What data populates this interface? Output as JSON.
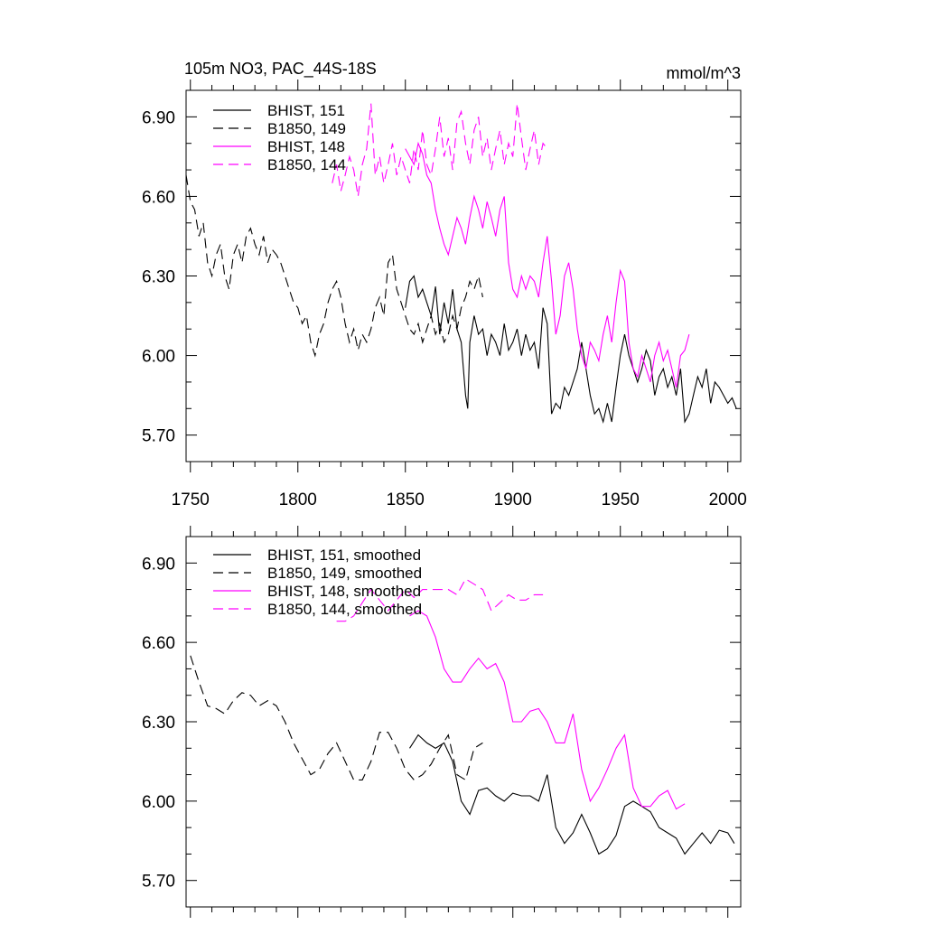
{
  "colors": {
    "black": "#000000",
    "magenta": "#ff00ff"
  },
  "chart_data": [
    {
      "type": "line",
      "title": "105m NO3, PAC_44S-18S",
      "units": "mmol/m^3",
      "xlim": [
        1748,
        2006
      ],
      "ylim": [
        5.6,
        7.0
      ],
      "yticks": [
        5.7,
        6.0,
        6.3,
        6.6,
        6.9
      ],
      "ytick_labels": [
        "5.70",
        "6.00",
        "6.30",
        "6.60",
        "6.90"
      ],
      "xticks": [
        1750,
        1800,
        1850,
        1900,
        1950,
        2000
      ],
      "xtick_labels": [
        "1750",
        "1800",
        "1850",
        "1900",
        "1950",
        "2000"
      ],
      "show_xtick_labels": true,
      "legend_position": "top-left",
      "series": [
        {
          "name": "BHIST, 151",
          "style": "solid",
          "color": "#000000",
          "x": [
            1850,
            1852,
            1854,
            1856,
            1858,
            1860,
            1862,
            1864,
            1866,
            1868,
            1870,
            1872,
            1874,
            1876,
            1878,
            1879,
            1880,
            1882,
            1884,
            1886,
            1888,
            1890,
            1892,
            1894,
            1896,
            1898,
            1900,
            1902,
            1904,
            1906,
            1908,
            1910,
            1912,
            1914,
            1916,
            1918,
            1920,
            1922,
            1924,
            1926,
            1928,
            1930,
            1932,
            1934,
            1936,
            1938,
            1940,
            1942,
            1944,
            1946,
            1948,
            1950,
            1952,
            1954,
            1956,
            1958,
            1960,
            1962,
            1964,
            1966,
            1968,
            1970,
            1972,
            1974,
            1976,
            1978,
            1980,
            1982,
            1984,
            1986,
            1988,
            1990,
            1992,
            1994,
            1996,
            1998,
            2000,
            2002,
            2004
          ],
          "y": [
            6.18,
            6.28,
            6.3,
            6.22,
            6.25,
            6.2,
            6.15,
            6.26,
            6.08,
            6.2,
            6.12,
            6.25,
            6.1,
            6.05,
            5.85,
            5.8,
            6.05,
            6.15,
            6.08,
            6.1,
            6.0,
            6.08,
            6.05,
            6.0,
            6.12,
            6.02,
            6.05,
            6.1,
            6.0,
            6.08,
            6.02,
            6.05,
            5.95,
            6.18,
            6.12,
            5.78,
            5.82,
            5.8,
            5.88,
            5.85,
            5.9,
            5.95,
            6.05,
            5.95,
            5.85,
            5.78,
            5.8,
            5.75,
            5.82,
            5.75,
            5.88,
            6.0,
            6.08,
            6.0,
            5.95,
            5.9,
            5.95,
            6.02,
            5.98,
            5.85,
            5.92,
            5.95,
            5.88,
            5.92,
            5.85,
            5.95,
            5.75,
            5.78,
            5.85,
            5.92,
            5.88,
            5.95,
            5.82,
            5.9,
            5.88,
            5.85,
            5.82,
            5.84,
            5.8
          ]
        },
        {
          "name": "B1850, 149",
          "style": "dash",
          "color": "#000000",
          "x": [
            1748,
            1750,
            1752,
            1754,
            1756,
            1758,
            1760,
            1762,
            1764,
            1766,
            1768,
            1770,
            1772,
            1774,
            1776,
            1778,
            1780,
            1782,
            1784,
            1786,
            1788,
            1790,
            1792,
            1794,
            1796,
            1798,
            1800,
            1802,
            1804,
            1806,
            1808,
            1810,
            1812,
            1814,
            1816,
            1818,
            1820,
            1822,
            1824,
            1826,
            1828,
            1830,
            1832,
            1834,
            1836,
            1838,
            1840,
            1842,
            1844,
            1846,
            1848,
            1850,
            1852,
            1854,
            1856,
            1858,
            1860,
            1862,
            1864,
            1866,
            1868,
            1870,
            1872,
            1874,
            1876,
            1878,
            1880,
            1882,
            1884,
            1886
          ],
          "y": [
            6.68,
            6.58,
            6.55,
            6.45,
            6.5,
            6.35,
            6.3,
            6.38,
            6.42,
            6.3,
            6.25,
            6.38,
            6.42,
            6.35,
            6.45,
            6.48,
            6.42,
            6.38,
            6.45,
            6.35,
            6.4,
            6.38,
            6.35,
            6.3,
            6.25,
            6.2,
            6.18,
            6.12,
            6.15,
            6.05,
            6.0,
            6.08,
            6.12,
            6.2,
            6.25,
            6.28,
            6.22,
            6.12,
            6.05,
            6.1,
            6.02,
            6.08,
            6.05,
            6.1,
            6.18,
            6.22,
            6.15,
            6.35,
            6.38,
            6.25,
            6.2,
            6.15,
            6.1,
            6.08,
            6.12,
            6.05,
            6.1,
            6.15,
            6.08,
            6.12,
            6.05,
            6.08,
            6.15,
            6.1,
            6.18,
            6.22,
            6.28,
            6.25,
            6.3,
            6.22
          ]
        },
        {
          "name": "BHIST, 148",
          "style": "solid",
          "color": "#ff00ff",
          "x": [
            1850,
            1852,
            1854,
            1856,
            1858,
            1860,
            1862,
            1864,
            1866,
            1868,
            1870,
            1872,
            1874,
            1876,
            1878,
            1880,
            1882,
            1884,
            1886,
            1888,
            1890,
            1892,
            1894,
            1896,
            1898,
            1900,
            1902,
            1904,
            1906,
            1908,
            1910,
            1912,
            1914,
            1916,
            1918,
            1920,
            1922,
            1924,
            1926,
            1928,
            1930,
            1932,
            1934,
            1936,
            1938,
            1940,
            1942,
            1944,
            1946,
            1948,
            1950,
            1952,
            1954,
            1956,
            1958,
            1960,
            1962,
            1964,
            1966,
            1968,
            1970,
            1972,
            1974,
            1976,
            1978,
            1980,
            1982
          ],
          "y": [
            6.78,
            6.75,
            6.72,
            6.8,
            6.76,
            6.68,
            6.65,
            6.55,
            6.48,
            6.42,
            6.38,
            6.45,
            6.52,
            6.48,
            6.42,
            6.52,
            6.6,
            6.55,
            6.48,
            6.58,
            6.52,
            6.45,
            6.55,
            6.6,
            6.35,
            6.25,
            6.22,
            6.3,
            6.25,
            6.3,
            6.28,
            6.22,
            6.35,
            6.45,
            6.28,
            6.08,
            6.15,
            6.3,
            6.35,
            6.25,
            6.1,
            6.0,
            5.95,
            6.05,
            6.02,
            5.98,
            6.08,
            6.15,
            6.05,
            6.2,
            6.32,
            6.28,
            6.05,
            5.95,
            5.92,
            6.0,
            5.95,
            5.9,
            6.0,
            6.05,
            5.98,
            6.02,
            5.95,
            5.88,
            6.0,
            6.02,
            6.08
          ]
        },
        {
          "name": "B1850, 144",
          "style": "dash",
          "color": "#ff00ff",
          "x": [
            1816,
            1818,
            1820,
            1822,
            1824,
            1826,
            1828,
            1830,
            1832,
            1834,
            1836,
            1838,
            1840,
            1842,
            1844,
            1846,
            1848,
            1850,
            1852,
            1854,
            1856,
            1858,
            1860,
            1862,
            1864,
            1866,
            1868,
            1870,
            1872,
            1874,
            1876,
            1878,
            1880,
            1882,
            1884,
            1886,
            1888,
            1890,
            1892,
            1894,
            1896,
            1898,
            1900,
            1902,
            1904,
            1906,
            1908,
            1910,
            1912,
            1914,
            1916
          ],
          "y": [
            6.65,
            6.72,
            6.62,
            6.68,
            6.75,
            6.7,
            6.6,
            6.72,
            6.78,
            6.95,
            6.68,
            6.75,
            6.65,
            6.72,
            6.8,
            6.68,
            6.75,
            6.7,
            6.65,
            6.78,
            6.7,
            6.85,
            6.72,
            6.68,
            6.78,
            6.9,
            6.75,
            6.82,
            6.7,
            6.88,
            6.92,
            6.8,
            6.72,
            6.85,
            6.9,
            6.75,
            6.82,
            6.7,
            6.78,
            6.85,
            6.72,
            6.8,
            6.75,
            6.95,
            6.82,
            6.7,
            6.78,
            6.85,
            6.72,
            6.8,
            6.78
          ]
        }
      ]
    },
    {
      "type": "line",
      "title": "",
      "units": "",
      "xlim": [
        1748,
        2006
      ],
      "ylim": [
        5.6,
        7.0
      ],
      "yticks": [
        5.7,
        6.0,
        6.3,
        6.6,
        6.9
      ],
      "ytick_labels": [
        "5.70",
        "6.00",
        "6.30",
        "6.60",
        "6.90"
      ],
      "xticks": [
        1750,
        1800,
        1850,
        1900,
        1950,
        2000
      ],
      "xtick_labels": [
        "",
        "",
        "",
        "",
        "",
        ""
      ],
      "show_xtick_labels": false,
      "legend_position": "top-left",
      "series": [
        {
          "name": "BHIST, 151, smoothed",
          "style": "solid",
          "color": "#000000",
          "x": [
            1852,
            1856,
            1860,
            1864,
            1868,
            1872,
            1876,
            1880,
            1884,
            1888,
            1892,
            1896,
            1900,
            1904,
            1908,
            1912,
            1916,
            1920,
            1924,
            1928,
            1932,
            1936,
            1940,
            1944,
            1948,
            1952,
            1956,
            1960,
            1964,
            1968,
            1972,
            1976,
            1980,
            1984,
            1988,
            1992,
            1996,
            2000,
            2003
          ],
          "y": [
            6.2,
            6.25,
            6.22,
            6.2,
            6.22,
            6.15,
            6.0,
            5.95,
            6.04,
            6.05,
            6.02,
            6.0,
            6.03,
            6.02,
            6.02,
            6.0,
            6.1,
            5.9,
            5.84,
            5.88,
            5.95,
            5.88,
            5.8,
            5.82,
            5.87,
            5.98,
            6.0,
            5.98,
            5.96,
            5.9,
            5.88,
            5.86,
            5.8,
            5.84,
            5.88,
            5.84,
            5.89,
            5.88,
            5.84
          ]
        },
        {
          "name": "B1850, 149, smoothed",
          "style": "dash",
          "color": "#000000",
          "x": [
            1750,
            1754,
            1758,
            1762,
            1766,
            1770,
            1774,
            1778,
            1782,
            1786,
            1790,
            1794,
            1798,
            1802,
            1806,
            1810,
            1814,
            1818,
            1822,
            1826,
            1830,
            1834,
            1838,
            1842,
            1846,
            1850,
            1854,
            1858,
            1862,
            1866,
            1870,
            1874,
            1878,
            1882,
            1886
          ],
          "y": [
            6.55,
            6.45,
            6.36,
            6.35,
            6.33,
            6.38,
            6.41,
            6.4,
            6.36,
            6.38,
            6.36,
            6.3,
            6.22,
            6.16,
            6.1,
            6.12,
            6.18,
            6.22,
            6.15,
            6.08,
            6.08,
            6.15,
            6.26,
            6.26,
            6.2,
            6.12,
            6.08,
            6.1,
            6.14,
            6.2,
            6.25,
            6.1,
            6.08,
            6.2,
            6.22
          ]
        },
        {
          "name": "BHIST, 148, smoothed",
          "style": "solid",
          "color": "#ff00ff",
          "x": [
            1852,
            1856,
            1860,
            1864,
            1868,
            1872,
            1876,
            1880,
            1884,
            1888,
            1892,
            1896,
            1900,
            1904,
            1908,
            1912,
            1916,
            1920,
            1924,
            1928,
            1932,
            1936,
            1940,
            1944,
            1948,
            1952,
            1956,
            1960,
            1964,
            1968,
            1972,
            1976,
            1980
          ],
          "y": [
            6.7,
            6.72,
            6.7,
            6.62,
            6.5,
            6.45,
            6.45,
            6.5,
            6.54,
            6.5,
            6.52,
            6.45,
            6.3,
            6.3,
            6.34,
            6.35,
            6.3,
            6.22,
            6.22,
            6.33,
            6.12,
            6.0,
            6.05,
            6.12,
            6.2,
            6.25,
            6.05,
            5.98,
            5.98,
            6.02,
            6.04,
            5.97,
            5.99
          ]
        },
        {
          "name": "B1850, 144, smoothed",
          "style": "dash",
          "color": "#ff00ff",
          "x": [
            1818,
            1822,
            1826,
            1830,
            1834,
            1838,
            1842,
            1846,
            1850,
            1854,
            1858,
            1862,
            1866,
            1870,
            1874,
            1878,
            1882,
            1886,
            1890,
            1894,
            1898,
            1902,
            1906,
            1910,
            1914
          ],
          "y": [
            6.68,
            6.68,
            6.7,
            6.75,
            6.8,
            6.76,
            6.72,
            6.76,
            6.8,
            6.77,
            6.8,
            6.8,
            6.8,
            6.8,
            6.78,
            6.84,
            6.82,
            6.8,
            6.72,
            6.75,
            6.78,
            6.76,
            6.76,
            6.78,
            6.78
          ]
        }
      ]
    }
  ]
}
